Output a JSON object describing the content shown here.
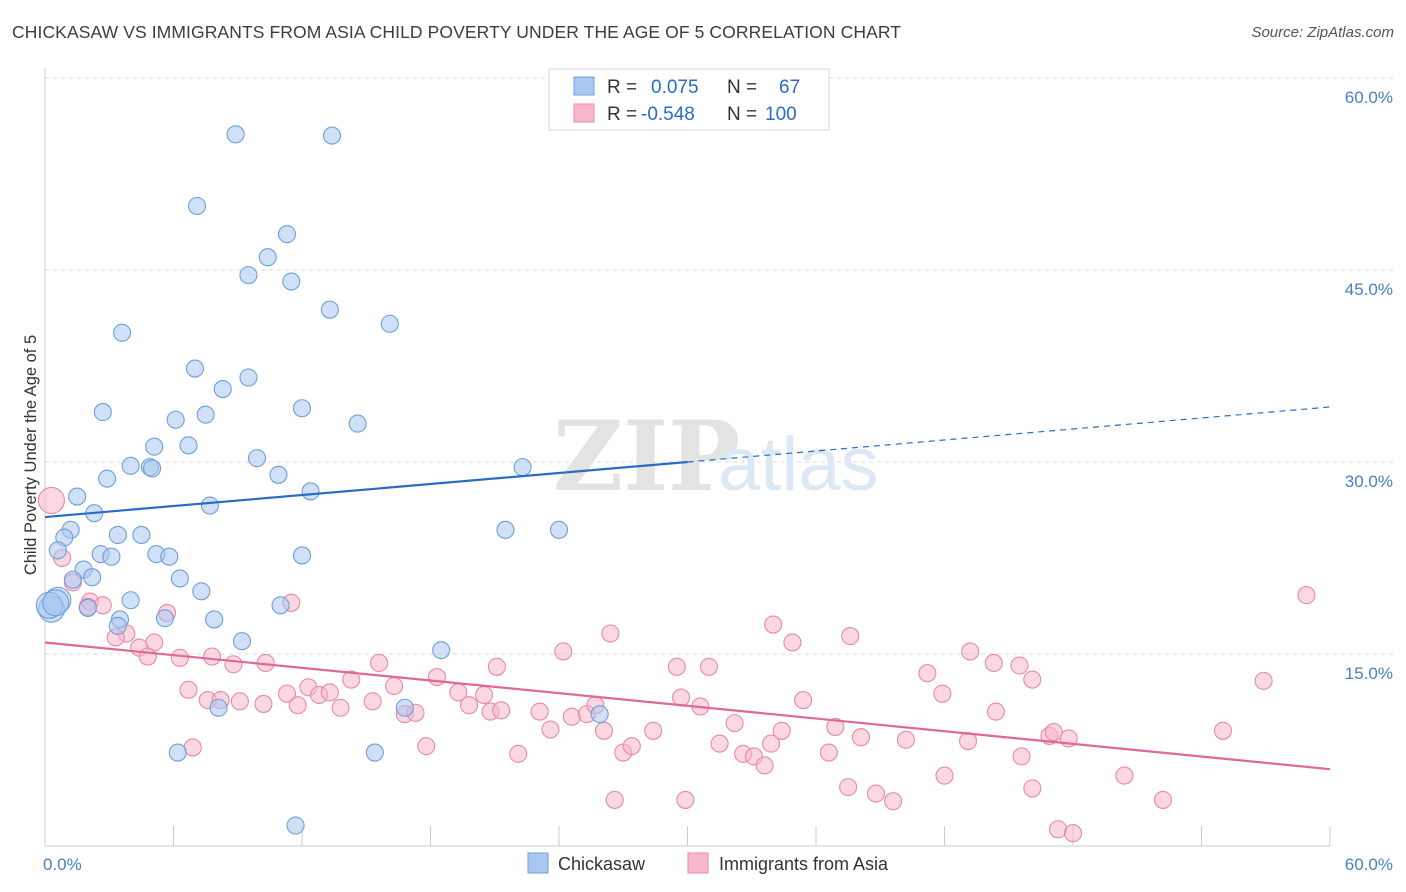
{
  "title": "CHICKASAW VS IMMIGRANTS FROM ASIA CHILD POVERTY UNDER THE AGE OF 5 CORRELATION CHART",
  "source": "Source: ZipAtlas.com",
  "watermark": {
    "zip": "ZIP",
    "atlas": "atlas"
  },
  "colors": {
    "chickasaw_fill": "#a9c8f0",
    "chickasaw_stroke": "#6f9fd8",
    "chickasaw_line": "#2a6cc4",
    "asia_fill": "#f7b6cb",
    "asia_stroke": "#e88aa8",
    "asia_line": "#e0679a",
    "tick_text": "#4a7fc8"
  },
  "legend": {
    "rows": [
      {
        "r_label": "R =",
        "r_value": "0.075",
        "n_label": "N =",
        "n_value": "67"
      },
      {
        "r_label": "R =",
        "r_value": "-0.548",
        "n_label": "N =",
        "n_value": "100"
      }
    ]
  },
  "bottom_legend": [
    "Chickasaw",
    "Immigrants from Asia"
  ],
  "chart_data": {
    "type": "scatter",
    "xlabel": "",
    "ylabel": "Child Poverty Under the Age of 5",
    "xlim": [
      0,
      60
    ],
    "ylim": [
      0,
      60
    ],
    "x_tick_labels": [
      "0.0%",
      "60.0%"
    ],
    "y_ticks": [
      15,
      30,
      45,
      60
    ],
    "y_tick_labels": [
      "15.0%",
      "30.0%",
      "45.0%",
      "60.0%"
    ],
    "grid": "horizontal dashed",
    "legend_position": "top-center",
    "series": [
      {
        "name": "Chickasaw",
        "points": [
          [
            8.9,
            55.6
          ],
          [
            13.4,
            55.5
          ],
          [
            7.1,
            50.0
          ],
          [
            11.3,
            47.8
          ],
          [
            10.4,
            46.0
          ],
          [
            9.5,
            44.6
          ],
          [
            11.5,
            44.1
          ],
          [
            13.3,
            41.9
          ],
          [
            16.1,
            40.8
          ],
          [
            3.6,
            40.1
          ],
          [
            7.0,
            37.3
          ],
          [
            9.5,
            36.6
          ],
          [
            8.3,
            35.7
          ],
          [
            12.0,
            34.2
          ],
          [
            2.7,
            33.9
          ],
          [
            7.5,
            33.7
          ],
          [
            6.1,
            33.3
          ],
          [
            14.6,
            33.0
          ],
          [
            5.1,
            31.2
          ],
          [
            6.7,
            31.3
          ],
          [
            9.9,
            30.3
          ],
          [
            4.0,
            29.7
          ],
          [
            4.9,
            29.6
          ],
          [
            5.0,
            29.5
          ],
          [
            22.3,
            29.6
          ],
          [
            10.9,
            29.0
          ],
          [
            2.9,
            28.7
          ],
          [
            12.4,
            27.7
          ],
          [
            1.5,
            27.3
          ],
          [
            7.7,
            26.6
          ],
          [
            2.3,
            26.0
          ],
          [
            21.5,
            24.7
          ],
          [
            24.0,
            24.7
          ],
          [
            1.2,
            24.7
          ],
          [
            3.4,
            24.3
          ],
          [
            4.5,
            24.3
          ],
          [
            0.9,
            24.1
          ],
          [
            0.6,
            23.1
          ],
          [
            2.6,
            22.8
          ],
          [
            3.1,
            22.6
          ],
          [
            5.2,
            22.8
          ],
          [
            5.8,
            22.6
          ],
          [
            12.0,
            22.7
          ],
          [
            1.8,
            21.6
          ],
          [
            2.2,
            21.0
          ],
          [
            6.3,
            20.9
          ],
          [
            1.3,
            20.8
          ],
          [
            7.3,
            19.9
          ],
          [
            0.6,
            19.2
          ],
          [
            4.0,
            19.2
          ],
          [
            11.0,
            18.8
          ],
          [
            2.0,
            18.6
          ],
          [
            0.3,
            18.5
          ],
          [
            3.5,
            17.7
          ],
          [
            5.6,
            17.8
          ],
          [
            7.9,
            17.7
          ],
          [
            3.4,
            17.2
          ],
          [
            9.2,
            16.0
          ],
          [
            18.5,
            15.3
          ],
          [
            8.1,
            10.8
          ],
          [
            16.8,
            10.8
          ],
          [
            25.9,
            10.3
          ],
          [
            6.2,
            7.3
          ],
          [
            15.4,
            7.3
          ],
          [
            11.7,
            1.6
          ],
          [
            0.2,
            18.8
          ],
          [
            0.5,
            19.0
          ]
        ]
      },
      {
        "name": "Immigrants from Asia",
        "points": [
          [
            0.3,
            27.0
          ],
          [
            0.8,
            22.5
          ],
          [
            1.3,
            20.6
          ],
          [
            2.1,
            19.1
          ],
          [
            2.7,
            18.8
          ],
          [
            11.5,
            19.0
          ],
          [
            2.0,
            18.7
          ],
          [
            5.7,
            18.2
          ],
          [
            3.8,
            16.6
          ],
          [
            3.3,
            16.3
          ],
          [
            5.1,
            15.9
          ],
          [
            4.4,
            15.5
          ],
          [
            7.8,
            14.8
          ],
          [
            4.8,
            14.8
          ],
          [
            6.3,
            14.7
          ],
          [
            8.8,
            14.2
          ],
          [
            10.3,
            14.3
          ],
          [
            15.6,
            14.3
          ],
          [
            21.1,
            14.0
          ],
          [
            24.2,
            15.2
          ],
          [
            26.4,
            16.6
          ],
          [
            29.5,
            14.0
          ],
          [
            31.0,
            14.0
          ],
          [
            34.0,
            17.3
          ],
          [
            34.9,
            15.9
          ],
          [
            37.6,
            16.4
          ],
          [
            41.2,
            13.5
          ],
          [
            43.2,
            15.2
          ],
          [
            44.3,
            14.3
          ],
          [
            45.5,
            14.1
          ],
          [
            46.1,
            13.0
          ],
          [
            56.9,
            12.9
          ],
          [
            58.9,
            19.6
          ],
          [
            6.7,
            12.2
          ],
          [
            7.6,
            11.4
          ],
          [
            8.2,
            11.4
          ],
          [
            9.1,
            11.3
          ],
          [
            10.2,
            11.1
          ],
          [
            11.3,
            11.9
          ],
          [
            11.8,
            11.0
          ],
          [
            12.3,
            12.4
          ],
          [
            12.8,
            11.8
          ],
          [
            13.3,
            12.0
          ],
          [
            13.8,
            10.8
          ],
          [
            14.3,
            13.0
          ],
          [
            15.3,
            11.3
          ],
          [
            16.3,
            12.5
          ],
          [
            16.8,
            10.3
          ],
          [
            17.3,
            10.4
          ],
          [
            18.3,
            13.2
          ],
          [
            19.3,
            12.0
          ],
          [
            19.8,
            11.0
          ],
          [
            20.5,
            11.8
          ],
          [
            20.8,
            10.5
          ],
          [
            21.3,
            10.6
          ],
          [
            22.1,
            7.2
          ],
          [
            23.1,
            10.5
          ],
          [
            23.6,
            9.1
          ],
          [
            24.6,
            10.1
          ],
          [
            25.3,
            10.3
          ],
          [
            25.7,
            11.0
          ],
          [
            26.1,
            9.0
          ],
          [
            27.0,
            7.3
          ],
          [
            27.4,
            7.8
          ],
          [
            28.4,
            9.0
          ],
          [
            29.7,
            11.6
          ],
          [
            30.6,
            10.9
          ],
          [
            31.5,
            8.0
          ],
          [
            32.2,
            9.6
          ],
          [
            32.6,
            7.2
          ],
          [
            33.1,
            7.0
          ],
          [
            33.6,
            6.3
          ],
          [
            33.9,
            8.0
          ],
          [
            34.4,
            9.0
          ],
          [
            35.4,
            11.4
          ],
          [
            36.6,
            7.3
          ],
          [
            36.9,
            9.3
          ],
          [
            38.1,
            8.5
          ],
          [
            40.2,
            8.3
          ],
          [
            41.9,
            11.9
          ],
          [
            42.0,
            5.5
          ],
          [
            43.1,
            8.2
          ],
          [
            44.4,
            10.5
          ],
          [
            45.6,
            7.0
          ],
          [
            46.9,
            8.6
          ],
          [
            47.1,
            8.9
          ],
          [
            47.8,
            8.4
          ],
          [
            37.5,
            4.6
          ],
          [
            38.8,
            4.1
          ],
          [
            39.6,
            3.5
          ],
          [
            46.1,
            4.5
          ],
          [
            50.4,
            5.5
          ],
          [
            52.2,
            3.6
          ],
          [
            47.3,
            1.3
          ],
          [
            48.0,
            1.0
          ],
          [
            55.0,
            9.0
          ],
          [
            6.9,
            7.7
          ],
          [
            17.8,
            7.8
          ],
          [
            26.6,
            3.6
          ],
          [
            29.9,
            3.6
          ]
        ]
      }
    ],
    "trend_lines": [
      {
        "series": "Chickasaw",
        "x": [
          0,
          60
        ],
        "y": [
          25.7,
          34.3
        ],
        "solid_until_x": 30,
        "style": "solid then dashed"
      },
      {
        "series": "Immigrants from Asia",
        "x": [
          0,
          60
        ],
        "y": [
          15.9,
          6.0
        ],
        "style": "solid"
      }
    ]
  }
}
